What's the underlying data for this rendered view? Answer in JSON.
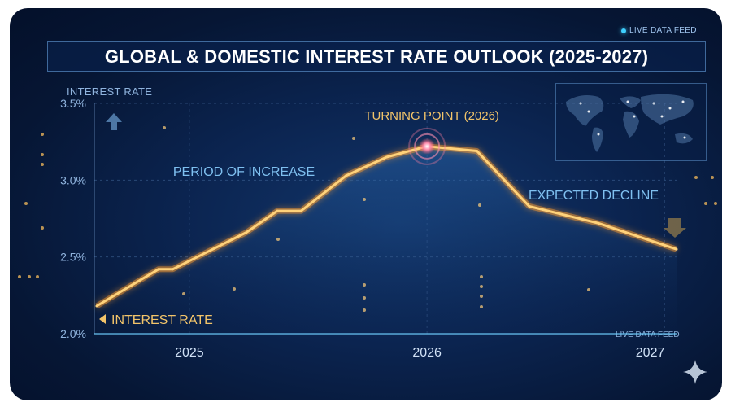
{
  "header": {
    "title": "GLOBAL & DOMESTIC INTEREST RATE OUTLOOK (2025-2027)",
    "live_feed_top": "LIVE DATA FEED",
    "live_feed_bottom": "LIVE DATA FEED"
  },
  "colors": {
    "line": "#ffd27a",
    "glow": "#ff9d2e",
    "annotation": "#f2c46a",
    "text_blue": "#7fc0f0",
    "grid": "#4a6fa3"
  },
  "chart_data": {
    "type": "line",
    "ylabel": "INTEREST RATE",
    "ylim": [
      2.0,
      3.5
    ],
    "y_ticks": [
      "3.5%",
      "3.0%",
      "2.5%",
      "2.0%"
    ],
    "y_tick_values": [
      3.5,
      3.0,
      2.5,
      2.0
    ],
    "xlim": [
      2024.6,
      2027.05
    ],
    "x_ticks": [
      "2025",
      "2026",
      "2027"
    ],
    "x_tick_values": [
      2025,
      2026,
      2027
    ],
    "grid": true,
    "series": [
      {
        "name": "INTEREST RATE",
        "x": [
          2024.61,
          2024.87,
          2024.93,
          2025.24,
          2025.37,
          2025.47,
          2025.66,
          2025.83,
          2026.0,
          2026.21,
          2026.43,
          2026.72,
          2027.05
        ],
        "y": [
          2.18,
          2.42,
          2.42,
          2.66,
          2.8,
          2.8,
          3.03,
          3.15,
          3.22,
          3.19,
          2.83,
          2.72,
          2.55
        ]
      }
    ],
    "annotations": {
      "increase": "PERIOD OF INCREASE",
      "turning_point": "TURNING POINT (2026)",
      "decline": "EXPECTED DECLINE",
      "series_label": "INTEREST RATE"
    },
    "turning_point": {
      "x": 2026.0,
      "y": 3.22
    }
  }
}
